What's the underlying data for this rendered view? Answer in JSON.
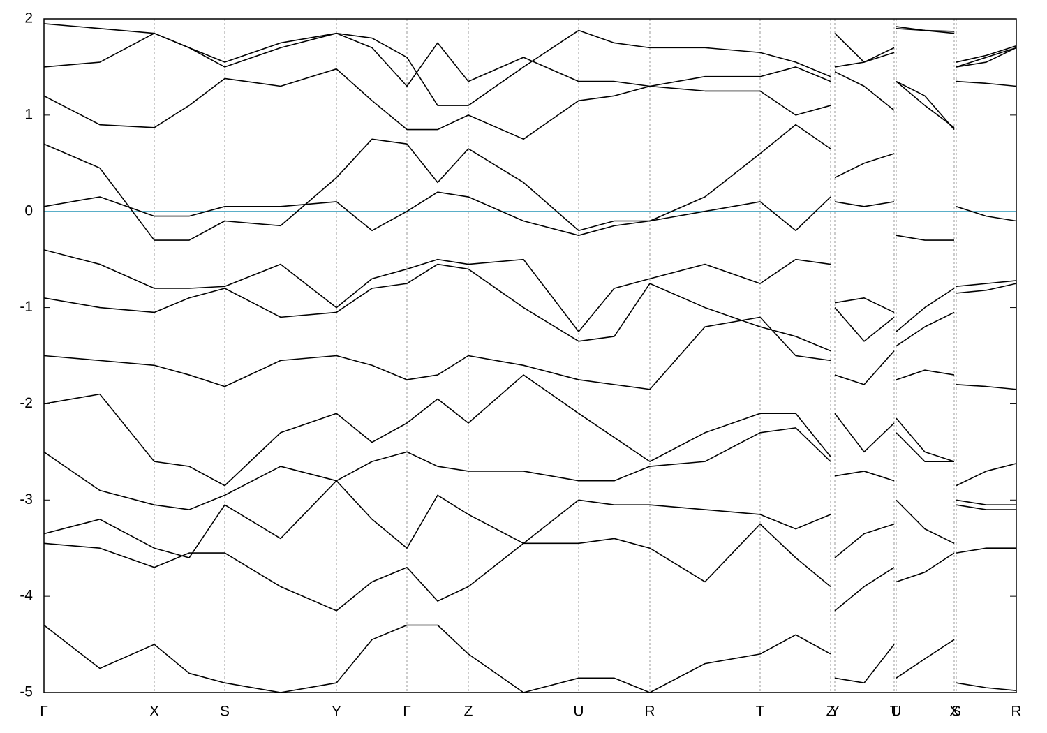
{
  "chart_data": {
    "type": "line",
    "x": [
      0,
      0.8,
      1.58,
      2.08,
      2.59,
      3.39,
      4.19,
      4.7,
      5.2,
      5.64,
      6.08,
      6.87,
      7.66,
      8.17,
      8.68,
      9.47,
      10.26,
      10.77,
      11.27,
      11.3,
      11.33,
      11.75,
      12.18,
      12.195,
      12.21,
      12.62,
      13.04,
      13.055,
      13.07,
      13.5,
      13.93
    ],
    "xlim": [
      0,
      13.93
    ],
    "xticks": [
      {
        "value": 0,
        "label": "Γ"
      },
      {
        "value": 1.58,
        "label": "X"
      },
      {
        "value": 2.59,
        "label": "S"
      },
      {
        "value": 4.19,
        "label": "Y"
      },
      {
        "value": 5.2,
        "label": "Γ"
      },
      {
        "value": 6.08,
        "label": "Z"
      },
      {
        "value": 7.66,
        "label": "U"
      },
      {
        "value": 8.68,
        "label": "R"
      },
      {
        "value": 10.26,
        "label": "T"
      },
      {
        "value": 11.27,
        "label": "Z"
      },
      {
        "value": 11.33,
        "label": "Y"
      },
      {
        "value": 12.18,
        "label": "T"
      },
      {
        "value": 12.21,
        "label": "U"
      },
      {
        "value": 13.04,
        "label": "X"
      },
      {
        "value": 13.07,
        "label": "S"
      },
      {
        "value": 13.93,
        "label": "R"
      }
    ],
    "ylim": [
      -5,
      2
    ],
    "yticks": [
      2,
      1,
      0,
      -1,
      -2,
      -3,
      -4,
      -5
    ],
    "grid": true,
    "fermi_level": 0,
    "fermi_color": "#5aaec8",
    "series": [
      {
        "color": "#000000",
        "values": [
          0.05,
          0.15,
          -0.05,
          -0.05,
          0.05,
          0.05,
          0.1,
          -0.2,
          0.0,
          0.2,
          0.15,
          -0.1,
          -0.25,
          -0.15,
          -0.1,
          0.0,
          0.1,
          -0.2,
          0.15,
          null,
          0.1,
          0.05,
          0.1,
          null,
          -0.25,
          -0.3,
          -0.3,
          null,
          0.05,
          -0.05,
          -0.1
        ]
      },
      {
        "color": "#000000",
        "values": [
          0.7,
          0.45,
          -0.3,
          -0.3,
          -0.1,
          -0.15,
          0.35,
          0.75,
          0.7,
          0.3,
          0.65,
          0.3,
          -0.2,
          -0.1,
          -0.1,
          0.15,
          0.6,
          0.9,
          0.65,
          null,
          0.35,
          0.5,
          0.6,
          null,
          1.35,
          1.2,
          0.85,
          null,
          1.35,
          1.33,
          1.3
        ]
      },
      {
        "color": "#000000",
        "values": [
          1.2,
          0.9,
          0.87,
          1.1,
          1.38,
          1.3,
          1.48,
          1.15,
          0.85,
          0.85,
          1.0,
          0.75,
          1.15,
          1.2,
          1.3,
          1.25,
          1.25,
          1.0,
          1.1,
          null,
          1.45,
          1.3,
          1.05,
          null,
          1.35,
          1.1,
          0.87,
          null,
          1.5,
          1.6,
          1.7
        ]
      },
      {
        "color": "#000000",
        "values": [
          1.5,
          1.55,
          1.85,
          1.7,
          1.5,
          1.7,
          1.85,
          1.7,
          1.3,
          1.75,
          1.35,
          1.6,
          1.35,
          1.35,
          1.3,
          1.4,
          1.4,
          1.5,
          1.35,
          null,
          1.5,
          1.55,
          1.65,
          null,
          1.9,
          1.88,
          1.87,
          null,
          1.55,
          1.62,
          1.72
        ]
      },
      {
        "color": "#000000",
        "values": [
          1.95,
          1.9,
          1.85,
          1.7,
          1.55,
          1.75,
          1.85,
          1.8,
          1.6,
          1.1,
          1.1,
          1.5,
          1.88,
          1.75,
          1.7,
          1.7,
          1.65,
          1.55,
          1.4,
          null,
          1.85,
          1.55,
          1.7,
          null,
          1.92,
          1.88,
          1.85,
          null,
          1.5,
          1.55,
          1.7
        ]
      },
      {
        "color": "#000000",
        "values": [
          -0.4,
          -0.55,
          -0.8,
          -0.8,
          -0.78,
          -0.55,
          -1.0,
          -0.7,
          -0.6,
          -0.5,
          -0.55,
          -0.5,
          -1.25,
          -0.8,
          -0.7,
          -0.55,
          -0.75,
          -0.5,
          -0.55,
          null,
          -0.95,
          -0.9,
          -1.05,
          null,
          -1.25,
          -1.0,
          -0.8,
          null,
          -0.78,
          -0.75,
          -0.72
        ]
      },
      {
        "color": "#000000",
        "values": [
          -0.9,
          -1.0,
          -1.05,
          -0.9,
          -0.8,
          -1.1,
          -1.05,
          -0.8,
          -0.75,
          -0.55,
          -0.6,
          -1.0,
          -1.35,
          -1.3,
          -0.75,
          -1.0,
          -1.2,
          -1.3,
          -1.45,
          null,
          -1.0,
          -1.35,
          -1.1,
          null,
          -1.4,
          -1.2,
          -1.05,
          null,
          -0.85,
          -0.82,
          -0.75
        ]
      },
      {
        "color": "#000000",
        "values": [
          -1.5,
          -1.55,
          -1.6,
          -1.7,
          -1.82,
          -1.55,
          -1.5,
          -1.6,
          -1.75,
          -1.7,
          -1.5,
          -1.6,
          -1.75,
          -1.8,
          -1.85,
          -1.2,
          -1.1,
          -1.5,
          -1.55,
          null,
          -1.7,
          -1.8,
          -1.45,
          null,
          -1.75,
          -1.65,
          -1.7,
          null,
          -1.8,
          -1.82,
          -1.85
        ]
      },
      {
        "color": "#000000",
        "values": [
          -2.0,
          -1.9,
          -2.6,
          -2.65,
          -2.85,
          -2.3,
          -2.1,
          -2.4,
          -2.2,
          -1.95,
          -2.2,
          -1.7,
          -2.1,
          -2.35,
          -2.6,
          -2.3,
          -2.1,
          -2.1,
          -2.55,
          null,
          -2.1,
          -2.5,
          -2.2,
          null,
          -2.15,
          -2.5,
          -2.6,
          null,
          -2.85,
          -2.7,
          -2.62
        ]
      },
      {
        "color": "#000000",
        "values": [
          -2.5,
          -2.9,
          -3.05,
          -3.1,
          -2.95,
          -2.65,
          -2.8,
          -2.6,
          -2.5,
          -2.65,
          -2.7,
          -2.7,
          -2.8,
          -2.8,
          -2.65,
          -2.6,
          -2.3,
          -2.25,
          -2.6,
          null,
          -2.75,
          -2.7,
          -2.8,
          null,
          -2.3,
          -2.6,
          -2.6,
          null,
          -3.0,
          -3.05,
          -3.05
        ]
      },
      {
        "color": "#000000",
        "values": [
          -3.35,
          -3.2,
          -3.5,
          -3.6,
          -3.05,
          -3.4,
          -2.8,
          -3.2,
          -3.5,
          -2.95,
          -3.15,
          -3.45,
          -3.0,
          -3.05,
          -3.05,
          -3.1,
          -3.15,
          -3.3,
          -3.15,
          null,
          -3.6,
          -3.35,
          -3.25,
          null,
          -3.0,
          -3.3,
          -3.45,
          null,
          -3.05,
          -3.1,
          -3.1
        ]
      },
      {
        "color": "#000000",
        "values": [
          -3.45,
          -3.5,
          -3.7,
          -3.55,
          -3.55,
          -3.9,
          -4.15,
          -3.85,
          -3.7,
          -4.05,
          -3.9,
          -3.45,
          -3.45,
          -3.4,
          -3.5,
          -3.85,
          -3.25,
          -3.6,
          -3.9,
          null,
          -4.15,
          -3.9,
          -3.7,
          null,
          -3.85,
          -3.75,
          -3.55,
          null,
          -3.55,
          -3.5,
          -3.5
        ]
      },
      {
        "color": "#000000",
        "values": [
          -4.3,
          -4.75,
          -4.5,
          -4.8,
          -4.9,
          -5.0,
          -4.9,
          -4.45,
          -4.3,
          -4.3,
          -4.6,
          -5.0,
          -4.85,
          -4.85,
          -5.0,
          -4.7,
          -4.6,
          -4.4,
          -4.6,
          null,
          -4.85,
          -4.9,
          -4.5,
          null,
          -4.85,
          -4.65,
          -4.45,
          null,
          -4.9,
          -4.95,
          -4.98
        ]
      }
    ]
  }
}
